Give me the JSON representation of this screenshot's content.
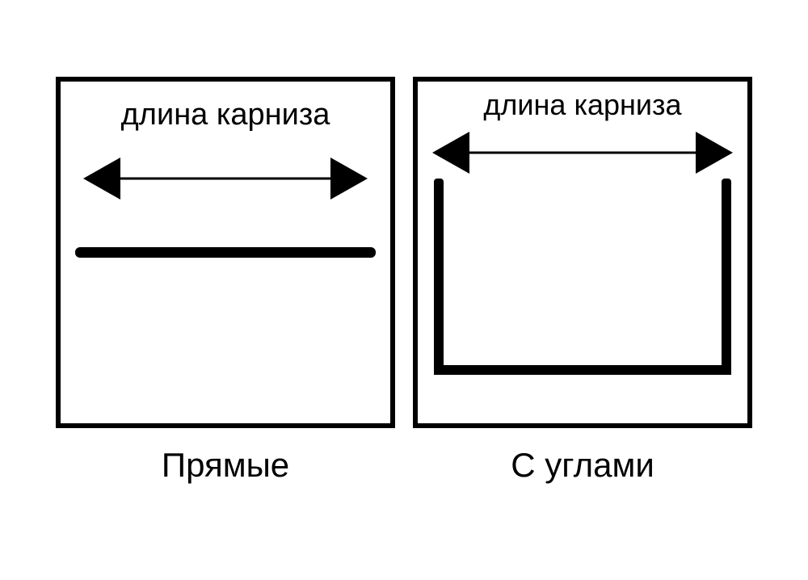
{
  "diagram": {
    "type": "infographic",
    "background_color": "#ffffff",
    "border_color": "#000000",
    "stroke_color": "#000000",
    "text_color": "#000000",
    "panel_border_width": 6,
    "bar_thickness": 13,
    "u_thickness": 12,
    "arrow": {
      "line_thickness": 3,
      "head_length": 46,
      "head_half_width": 26
    },
    "label_fontsize": 38,
    "caption_fontsize": 42,
    "panels": [
      {
        "id": "straight",
        "top_label": "длина карниза",
        "caption": "Прямые",
        "shape": "straight"
      },
      {
        "id": "corners",
        "top_label": "длина карниза",
        "caption": "С углами",
        "shape": "u-shape"
      }
    ]
  }
}
